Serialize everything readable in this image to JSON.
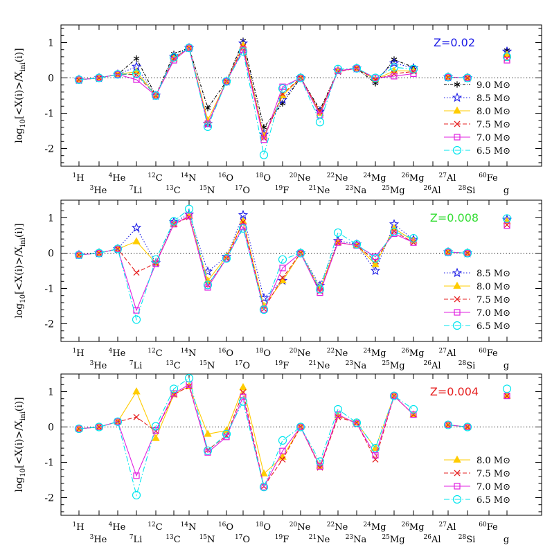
{
  "chart_data": [
    {
      "type": "line",
      "title": "Z=0.02",
      "title_color": "#1a1ae6",
      "ylabel": "log10[<X(i)>/Xini(i)]",
      "ylim": [
        -2.5,
        1.5
      ],
      "yticks": [
        -2,
        -1,
        0,
        1
      ],
      "legend_position": "lower-right",
      "series": [
        {
          "name": "9.0 M⊙",
          "color": "#000000",
          "marker": "asterisk",
          "dash": "4 2 1 2",
          "values": [
            -0.05,
            0.0,
            0.1,
            0.55,
            -0.5,
            0.68,
            0.85,
            -0.85,
            -0.1,
            1.05,
            -1.4,
            -0.72,
            0.0,
            -0.9,
            0.2,
            0.27,
            -0.15,
            0.52,
            0.3,
            null,
            0.02,
            0.0,
            null,
            0.78
          ]
        },
        {
          "name": "8.5 M⊙",
          "color": "#1a1ae6",
          "marker": "star",
          "dash": "1.5 2.5",
          "values": [
            -0.05,
            0.0,
            0.1,
            0.32,
            -0.5,
            0.6,
            0.85,
            -1.3,
            -0.1,
            0.98,
            -1.6,
            -0.62,
            0.0,
            -0.95,
            0.2,
            0.27,
            -0.05,
            0.42,
            0.28,
            null,
            0.02,
            0.0,
            null,
            0.75
          ]
        },
        {
          "name": "8.0 M⊙",
          "color": "#ffcc00",
          "marker": "triangle",
          "dash": "",
          "values": [
            -0.05,
            0.0,
            0.1,
            0.18,
            -0.5,
            0.55,
            0.85,
            -1.2,
            -0.1,
            0.92,
            -1.65,
            -0.5,
            0.0,
            -1.0,
            0.2,
            0.27,
            -0.05,
            0.2,
            0.2,
            null,
            0.02,
            0.0,
            null,
            0.65
          ]
        },
        {
          "name": "7.5 M⊙",
          "color": "#e62020",
          "marker": "cross",
          "dash": "6 3",
          "values": [
            -0.05,
            0.0,
            0.1,
            0.1,
            -0.5,
            0.55,
            0.85,
            -1.3,
            -0.1,
            0.88,
            -1.7,
            -0.45,
            0.0,
            -0.95,
            0.18,
            0.27,
            -0.05,
            0.12,
            0.18,
            null,
            0.02,
            0.0,
            null,
            0.55
          ]
        },
        {
          "name": "7.0 M⊙",
          "color": "#e020e0",
          "marker": "square",
          "dash": "",
          "values": [
            -0.05,
            0.0,
            0.1,
            -0.05,
            -0.5,
            0.5,
            0.85,
            -1.3,
            -0.1,
            0.8,
            -1.75,
            -0.25,
            0.0,
            -1.05,
            0.2,
            0.27,
            0.0,
            0.05,
            0.12,
            null,
            0.02,
            0.0,
            null,
            0.5
          ]
        },
        {
          "name": "6.5 M⊙",
          "color": "#00e5ee",
          "marker": "circle",
          "dash": "8 3 1.5 3",
          "values": [
            -0.05,
            0.0,
            0.1,
            0.12,
            -0.5,
            0.58,
            0.85,
            -1.38,
            -0.1,
            0.75,
            -2.18,
            -0.3,
            0.0,
            -1.25,
            0.25,
            0.27,
            0.0,
            0.3,
            0.25,
            null,
            0.02,
            0.0,
            null,
            0.6
          ]
        }
      ]
    },
    {
      "type": "line",
      "title": "Z=0.008",
      "title_color": "#33dd33",
      "ylabel": "log10[<X(i)>/Xini(i)]",
      "ylim": [
        -2.5,
        1.5
      ],
      "yticks": [
        -2,
        -1,
        0,
        1
      ],
      "legend_position": "lower-right",
      "series": [
        {
          "name": "8.5 M⊙",
          "color": "#1a1ae6",
          "marker": "star",
          "dash": "1.5 2.5",
          "values": [
            -0.05,
            0.0,
            0.12,
            0.72,
            -0.28,
            0.88,
            1.1,
            -0.52,
            -0.1,
            1.08,
            -1.27,
            -0.78,
            0.0,
            -0.92,
            0.35,
            0.25,
            -0.5,
            0.82,
            0.38,
            null,
            0.03,
            0.0,
            null,
            0.95
          ]
        },
        {
          "name": "8.0 M⊙",
          "color": "#ffcc00",
          "marker": "triangle",
          "dash": "",
          "values": [
            -0.05,
            0.0,
            0.12,
            0.33,
            -0.28,
            0.82,
            1.05,
            -0.78,
            -0.1,
            0.9,
            -1.5,
            -0.78,
            0.0,
            -1.0,
            0.3,
            0.22,
            -0.32,
            0.7,
            0.35,
            null,
            0.03,
            0.0,
            null,
            0.9
          ]
        },
        {
          "name": "7.5 M⊙",
          "color": "#e62020",
          "marker": "cross",
          "dash": "6 3",
          "values": [
            -0.05,
            0.0,
            0.12,
            -0.55,
            -0.28,
            0.82,
            1.02,
            -0.9,
            -0.15,
            0.88,
            -1.58,
            -0.7,
            0.0,
            -1.08,
            0.3,
            0.22,
            -0.22,
            0.62,
            0.3,
            null,
            0.03,
            0.0,
            null,
            0.8
          ]
        },
        {
          "name": "7.0 M⊙",
          "color": "#e020e0",
          "marker": "square",
          "dash": "",
          "values": [
            -0.05,
            0.0,
            0.12,
            -1.62,
            -0.3,
            0.82,
            1.05,
            -0.97,
            -0.15,
            0.75,
            -1.6,
            -0.42,
            0.0,
            -1.12,
            0.3,
            0.22,
            -0.1,
            0.55,
            0.3,
            null,
            0.03,
            0.0,
            null,
            0.78
          ]
        },
        {
          "name": "6.5 M⊙",
          "color": "#00e5ee",
          "marker": "circle",
          "dash": "8 3 1.5 3",
          "values": [
            -0.05,
            0.0,
            0.12,
            -1.88,
            -0.18,
            0.9,
            1.25,
            -0.9,
            -0.15,
            0.7,
            -1.6,
            -0.18,
            0.0,
            -1.02,
            0.58,
            0.25,
            -0.15,
            0.6,
            0.42,
            null,
            0.03,
            0.0,
            null,
            0.98
          ]
        }
      ]
    },
    {
      "type": "line",
      "title": "Z=0.004",
      "title_color": "#e62020",
      "ylabel": "log10[<X(i)>/Xini(i)]",
      "ylim": [
        -2.5,
        1.5
      ],
      "yticks": [
        -2,
        -1,
        0,
        1
      ],
      "legend_position": "lower-right",
      "series": [
        {
          "name": "8.0 M⊙",
          "color": "#ffcc00",
          "marker": "triangle",
          "dash": "",
          "values": [
            -0.05,
            0.0,
            0.15,
            1.0,
            -0.32,
            0.92,
            1.15,
            -0.2,
            -0.1,
            1.12,
            -1.32,
            -0.85,
            0.0,
            -1.1,
            0.32,
            0.12,
            -0.6,
            0.88,
            0.35,
            null,
            0.06,
            0.0,
            null,
            0.88
          ]
        },
        {
          "name": "7.5 M⊙",
          "color": "#e62020",
          "marker": "cross",
          "dash": "6 3",
          "values": [
            -0.05,
            0.0,
            0.15,
            0.28,
            -0.12,
            0.92,
            1.15,
            -0.65,
            -0.25,
            0.98,
            -1.68,
            -0.92,
            0.0,
            -1.15,
            0.28,
            0.12,
            -0.92,
            0.88,
            0.35,
            null,
            0.06,
            0.0,
            null,
            0.88
          ]
        },
        {
          "name": "7.0 M⊙",
          "color": "#e020e0",
          "marker": "square",
          "dash": "",
          "values": [
            -0.05,
            0.0,
            0.15,
            -1.38,
            -0.1,
            0.95,
            1.2,
            -0.72,
            -0.28,
            0.85,
            -1.7,
            -0.68,
            0.0,
            -1.12,
            0.35,
            0.1,
            -0.8,
            0.88,
            0.35,
            null,
            0.06,
            0.0,
            null,
            0.88
          ]
        },
        {
          "name": "6.5 M⊙",
          "color": "#00e5ee",
          "marker": "circle",
          "dash": "8 3 1.5 3",
          "values": [
            -0.05,
            0.0,
            0.15,
            -1.93,
            0.02,
            1.08,
            1.38,
            -0.67,
            -0.2,
            0.72,
            -1.7,
            -0.38,
            0.0,
            -0.98,
            0.5,
            0.12,
            -0.6,
            0.88,
            0.5,
            null,
            0.06,
            0.0,
            null,
            1.08
          ]
        }
      ]
    }
  ],
  "isotopes": [
    {
      "mass": "1",
      "el": "H"
    },
    {
      "mass": "3",
      "el": "He"
    },
    {
      "mass": "4",
      "el": "He"
    },
    {
      "mass": "7",
      "el": "Li"
    },
    {
      "mass": "12",
      "el": "C"
    },
    {
      "mass": "13",
      "el": "C"
    },
    {
      "mass": "14",
      "el": "N"
    },
    {
      "mass": "15",
      "el": "N"
    },
    {
      "mass": "16",
      "el": "O"
    },
    {
      "mass": "17",
      "el": "O"
    },
    {
      "mass": "18",
      "el": "O"
    },
    {
      "mass": "19",
      "el": "F"
    },
    {
      "mass": "20",
      "el": "Ne"
    },
    {
      "mass": "21",
      "el": "Ne"
    },
    {
      "mass": "22",
      "el": "Ne"
    },
    {
      "mass": "23",
      "el": "Na"
    },
    {
      "mass": "24",
      "el": "Mg"
    },
    {
      "mass": "25",
      "el": "Mg"
    },
    {
      "mass": "26",
      "el": "Mg"
    },
    {
      "mass": "26",
      "el": "Al"
    },
    {
      "mass": "27",
      "el": "Al"
    },
    {
      "mass": "28",
      "el": "Si"
    },
    {
      "mass": "60",
      "el": "Fe"
    },
    {
      "mass": "",
      "el": "g"
    }
  ],
  "ylabel_parts": {
    "log": "log",
    "sub": "10",
    "body": "[<X(i)>/X",
    "ini": "ini",
    "tail": "(i)]"
  },
  "tick_labels": [
    "-2",
    "-1",
    "0",
    "1"
  ]
}
